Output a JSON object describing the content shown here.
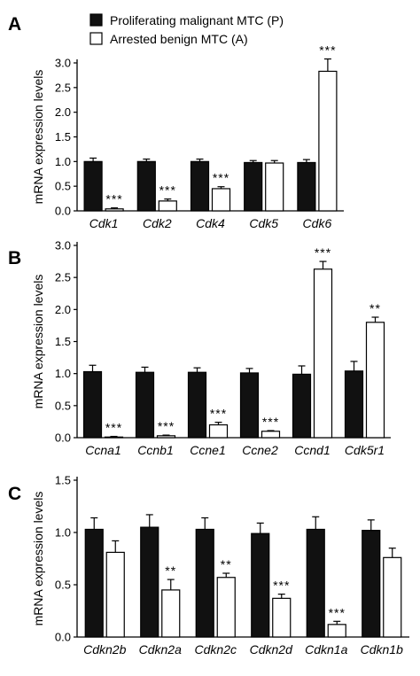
{
  "legend": {
    "series_p": "Proliferating malignant MTC (P)",
    "series_a": "Arrested benign MTC (A)"
  },
  "colors": {
    "P": "#111111",
    "A": "#ffffff",
    "stroke": "#000000"
  },
  "chart_data": [
    {
      "panel": "A",
      "type": "bar",
      "ylabel": "mRNA expression  levels",
      "ylim": [
        0,
        3.0
      ],
      "yticks": [
        "0.0",
        "0.5",
        "1.0",
        "1.5",
        "2.0",
        "2.5",
        "3.0"
      ],
      "categories": [
        "Cdk1",
        "Cdk2",
        "Cdk4",
        "Cdk5",
        "Cdk6"
      ],
      "series": [
        {
          "name": "Proliferating malignant MTC (P)",
          "values": [
            1.0,
            1.0,
            1.0,
            0.98,
            0.98
          ],
          "errors": [
            0.07,
            0.05,
            0.05,
            0.04,
            0.06
          ]
        },
        {
          "name": "Arrested benign MTC (A)",
          "values": [
            0.04,
            0.2,
            0.45,
            0.97,
            2.83
          ],
          "errors": [
            0.02,
            0.04,
            0.04,
            0.05,
            0.25
          ]
        }
      ],
      "significance": [
        "***",
        "***",
        "***",
        "",
        "***"
      ]
    },
    {
      "panel": "B",
      "type": "bar",
      "ylabel": "mRNA expression  levels",
      "ylim": [
        0,
        3.0
      ],
      "yticks": [
        "0.0",
        "0.5",
        "1.0",
        "1.5",
        "2.0",
        "2.5",
        "3.0"
      ],
      "categories": [
        "Ccna1",
        "Ccnb1",
        "Ccne1",
        "Ccne2",
        "Ccnd1",
        "Cdk5r1"
      ],
      "series": [
        {
          "name": "Proliferating malignant MTC (P)",
          "values": [
            1.03,
            1.02,
            1.02,
            1.01,
            0.99,
            1.04
          ],
          "errors": [
            0.1,
            0.08,
            0.07,
            0.07,
            0.13,
            0.15
          ]
        },
        {
          "name": "Arrested benign MTC (A)",
          "values": [
            0.01,
            0.03,
            0.2,
            0.1,
            2.63,
            1.8
          ],
          "errors": [
            0.01,
            0.01,
            0.04,
            0.01,
            0.12,
            0.08
          ]
        }
      ],
      "significance": [
        "***",
        "***",
        "***",
        "***",
        "***",
        "**"
      ]
    },
    {
      "panel": "C",
      "type": "bar",
      "ylabel": "mRNA expression  levels",
      "ylim": [
        0,
        1.5
      ],
      "yticks": [
        "0.0",
        "0.5",
        "1.0",
        "1.5"
      ],
      "categories": [
        "Cdkn2b",
        "Cdkn2a",
        "Cdkn2c",
        "Cdkn2d",
        "Cdkn1a",
        "Cdkn1b"
      ],
      "series": [
        {
          "name": "Proliferating malignant MTC (P)",
          "values": [
            1.03,
            1.05,
            1.03,
            0.99,
            1.03,
            1.02
          ],
          "errors": [
            0.11,
            0.12,
            0.11,
            0.1,
            0.12,
            0.1
          ]
        },
        {
          "name": "Arrested benign MTC (A)",
          "values": [
            0.81,
            0.45,
            0.57,
            0.37,
            0.12,
            0.76
          ],
          "errors": [
            0.11,
            0.1,
            0.04,
            0.04,
            0.03,
            0.09
          ]
        }
      ],
      "significance": [
        "",
        "**",
        "**",
        "***",
        "***",
        ""
      ]
    }
  ]
}
